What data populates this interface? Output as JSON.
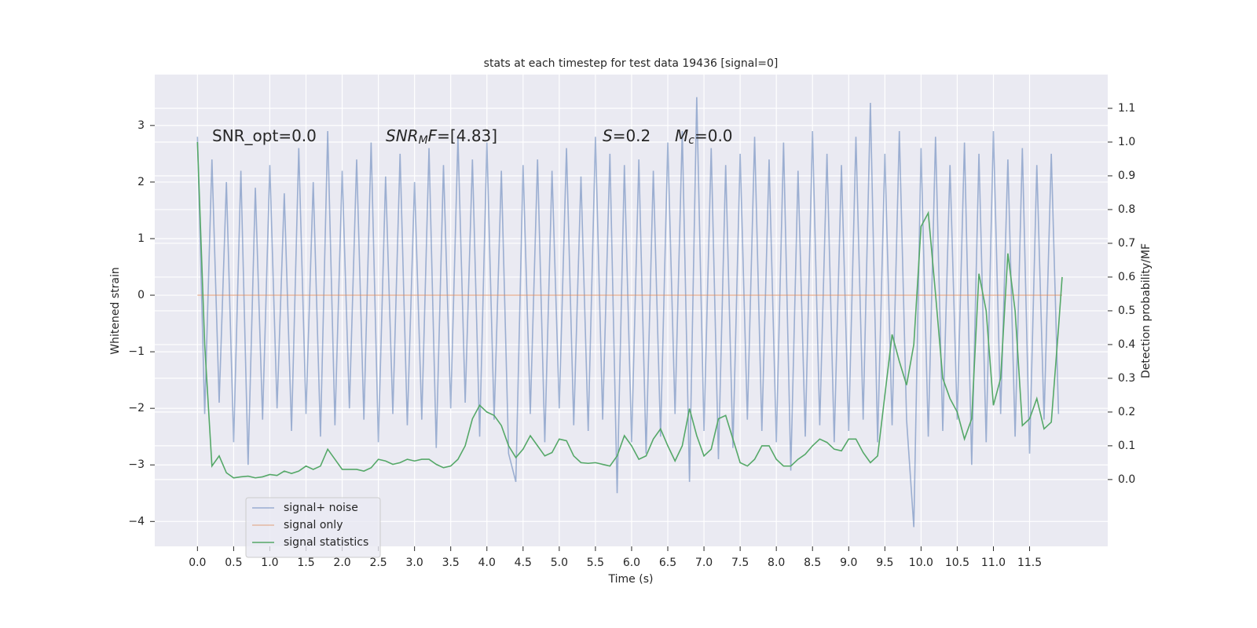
{
  "chart_data": {
    "type": "line",
    "title": "stats at each timestep for test data 19436 [signal=0]",
    "xlabel": "Time (s)",
    "ylabel": "Whitened strain",
    "y2label": "Detection probability/MF",
    "xlim": [
      -0.59,
      12.58
    ],
    "ylim": [
      -4.44,
      3.9
    ],
    "y2lim": [
      -0.198,
      1.2
    ],
    "xticks": [
      {
        "value": 0,
        "label": "0.0"
      },
      0.5,
      {
        "value": 1,
        "label": "1.0"
      },
      1.5,
      {
        "value": 2,
        "label": "2.0"
      },
      2.5,
      {
        "value": 3,
        "label": "3.0"
      },
      3.5,
      {
        "value": 4,
        "label": "4.0"
      },
      4.5,
      {
        "value": 5,
        "label": "5.0"
      },
      5.5,
      {
        "value": 6,
        "label": "6.0"
      },
      6.5,
      {
        "value": 7,
        "label": "7.0"
      },
      7.5,
      {
        "value": 8,
        "label": "8.0"
      },
      8.5,
      {
        "value": 9,
        "label": "9.0"
      },
      9.5,
      {
        "value": 10,
        "label": "10.0"
      },
      10.5,
      {
        "value": 11,
        "label": "11.0"
      },
      11.5
    ],
    "yticks": [
      {
        "value": -4,
        "label": "−4"
      },
      {
        "value": -3,
        "label": "−3"
      },
      {
        "value": -2,
        "label": "−2"
      },
      {
        "value": -1,
        "label": "−1"
      },
      0,
      1,
      2,
      3
    ],
    "y2ticks": [
      {
        "value": 0,
        "label": "0.0"
      },
      0.1,
      0.2,
      0.3,
      0.4,
      0.5,
      0.6,
      0.7,
      0.8,
      0.9,
      {
        "value": 1,
        "label": "1.0"
      },
      1.1
    ],
    "grid": true,
    "legend": "lower left",
    "annotations": [
      [
        {
          "text": "SNR_opt=0.0",
          "style": "normal"
        }
      ],
      [
        {
          "text": "SNR",
          "style": "italic"
        },
        {
          "text": "M",
          "style": "italic-sub"
        },
        {
          "text": "F",
          "style": "italic"
        },
        {
          "text": "=[4.83]",
          "style": "normal"
        }
      ],
      [
        {
          "text": "S",
          "style": "italic"
        },
        {
          "text": "=0.2",
          "style": "normal"
        }
      ],
      [
        {
          "text": "M",
          "style": "italic"
        },
        {
          "text": "c",
          "style": "italic-sub"
        },
        {
          "text": "=0.0",
          "style": "normal"
        }
      ]
    ],
    "series": [
      {
        "name": "signal+ noise",
        "color": "#4c72b0",
        "alpha": 0.5,
        "x": [
          0,
          0.1,
          0.2,
          0.3,
          0.4,
          0.5,
          0.6,
          0.7,
          0.8,
          0.9,
          1,
          1.1,
          1.2,
          1.3,
          1.4,
          1.5,
          1.6,
          1.7,
          1.8,
          1.9,
          2,
          2.1,
          2.2,
          2.3,
          2.4,
          2.5,
          2.6,
          2.7,
          2.8,
          2.9,
          3,
          3.1,
          3.2,
          3.3,
          3.4,
          3.5,
          3.6,
          3.7,
          3.8,
          3.9,
          4,
          4.1,
          4.2,
          4.3,
          4.4,
          4.5,
          4.6,
          4.7,
          4.8,
          4.9,
          5,
          5.1,
          5.2,
          5.3,
          5.4,
          5.5,
          5.6,
          5.7,
          5.8,
          5.9,
          6,
          6.1,
          6.2,
          6.3,
          6.4,
          6.5,
          6.6,
          6.7,
          6.8,
          6.9,
          7,
          7.1,
          7.2,
          7.3,
          7.4,
          7.5,
          7.6,
          7.7,
          7.8,
          7.9,
          8,
          8.1,
          8.2,
          8.3,
          8.4,
          8.5,
          8.6,
          8.7,
          8.8,
          8.9,
          9,
          9.1,
          9.2,
          9.3,
          9.4,
          9.5,
          9.6,
          9.7,
          9.8,
          9.9,
          10,
          10.1,
          10.2,
          10.3,
          10.4,
          10.5,
          10.6,
          10.7,
          10.8,
          10.9,
          11,
          11.1,
          11.2,
          11.3,
          11.4,
          11.5,
          11.6,
          11.7,
          11.8,
          11.9
        ],
        "values": [
          2.8,
          -2.1,
          2.4,
          -1.9,
          2.0,
          -2.6,
          2.2,
          -3.0,
          1.9,
          -2.2,
          2.3,
          -2.0,
          1.8,
          -2.4,
          2.6,
          -2.1,
          2.0,
          -2.5,
          2.9,
          -2.3,
          2.2,
          -2.0,
          2.4,
          -2.2,
          2.7,
          -2.6,
          2.1,
          -2.1,
          2.5,
          -2.3,
          2.0,
          -2.2,
          2.6,
          -2.7,
          2.3,
          -2.0,
          2.8,
          -1.9,
          2.4,
          -2.5,
          2.7,
          -2.2,
          2.2,
          -2.8,
          -3.3,
          2.3,
          -2.1,
          2.4,
          -2.6,
          2.2,
          -2.0,
          2.6,
          -2.3,
          2.1,
          -2.4,
          2.8,
          -2.2,
          2.5,
          -3.5,
          2.3,
          -2.6,
          2.4,
          -2.8,
          2.2,
          -2.5,
          2.7,
          -2.1,
          2.9,
          -3.3,
          3.5,
          -2.4,
          2.6,
          -2.9,
          2.3,
          -2.7,
          2.5,
          -2.2,
          2.8,
          -2.4,
          2.4,
          -2.6,
          2.7,
          -3.1,
          2.2,
          -2.5,
          2.9,
          -2.3,
          2.5,
          -2.6,
          2.3,
          -2.4,
          2.8,
          -2.2,
          3.4,
          -2.6,
          2.5,
          -2.3,
          2.9,
          -2.2,
          -4.1,
          2.6,
          -2.5,
          2.8,
          -2.4,
          2.3,
          -2.2,
          2.7,
          -3.0,
          2.5,
          -2.6,
          2.9,
          -2.1,
          2.4,
          -2.5,
          2.6,
          -2.8,
          2.3,
          -2.2,
          2.5,
          -2.1
        ]
      },
      {
        "name": "signal only",
        "color": "#dd8452",
        "alpha": 0.5,
        "x": [
          0,
          11.95
        ],
        "values": [
          0,
          0
        ]
      },
      {
        "name": "signal statistics",
        "color": "#55a868",
        "alpha": 1,
        "axis": "y2",
        "x": [
          0,
          0.1,
          0.2,
          0.3,
          0.4,
          0.5,
          0.6,
          0.7,
          0.8,
          0.9,
          1,
          1.1,
          1.2,
          1.3,
          1.4,
          1.5,
          1.6,
          1.7,
          1.8,
          1.9,
          2,
          2.1,
          2.2,
          2.3,
          2.4,
          2.5,
          2.6,
          2.7,
          2.8,
          2.9,
          3,
          3.1,
          3.2,
          3.3,
          3.4,
          3.5,
          3.6,
          3.7,
          3.8,
          3.9,
          4,
          4.1,
          4.2,
          4.3,
          4.4,
          4.5,
          4.6,
          4.7,
          4.8,
          4.9,
          5,
          5.1,
          5.2,
          5.3,
          5.4,
          5.5,
          5.6,
          5.7,
          5.8,
          5.9,
          6,
          6.1,
          6.2,
          6.3,
          6.4,
          6.5,
          6.6,
          6.7,
          6.8,
          6.9,
          7,
          7.1,
          7.2,
          7.3,
          7.4,
          7.5,
          7.6,
          7.7,
          7.8,
          7.9,
          8,
          8.1,
          8.2,
          8.3,
          8.4,
          8.5,
          8.6,
          8.7,
          8.8,
          8.9,
          9,
          9.1,
          9.2,
          9.3,
          9.4,
          9.5,
          9.6,
          9.7,
          9.8,
          9.9,
          10,
          10.1,
          10.2,
          10.3,
          10.4,
          10.5,
          10.6,
          10.7,
          10.8,
          10.9,
          11,
          11.1,
          11.2,
          11.3,
          11.4,
          11.5,
          11.6,
          11.7,
          11.8,
          11.9,
          11.95
        ],
        "values": [
          1.0,
          0.4,
          0.04,
          0.07,
          0.02,
          0.005,
          0.008,
          0.01,
          0.005,
          0.008,
          0.015,
          0.012,
          0.025,
          0.018,
          0.025,
          0.04,
          0.03,
          0.04,
          0.09,
          0.06,
          0.03,
          0.03,
          0.03,
          0.025,
          0.035,
          0.06,
          0.055,
          0.045,
          0.05,
          0.06,
          0.055,
          0.06,
          0.06,
          0.045,
          0.035,
          0.04,
          0.06,
          0.1,
          0.18,
          0.22,
          0.2,
          0.19,
          0.16,
          0.1,
          0.065,
          0.09,
          0.13,
          0.1,
          0.07,
          0.08,
          0.12,
          0.115,
          0.07,
          0.05,
          0.048,
          0.05,
          0.045,
          0.04,
          0.07,
          0.13,
          0.1,
          0.06,
          0.07,
          0.12,
          0.15,
          0.1,
          0.055,
          0.1,
          0.21,
          0.13,
          0.07,
          0.09,
          0.18,
          0.19,
          0.12,
          0.05,
          0.04,
          0.06,
          0.1,
          0.1,
          0.06,
          0.04,
          0.04,
          0.06,
          0.075,
          0.1,
          0.12,
          0.11,
          0.09,
          0.085,
          0.12,
          0.12,
          0.08,
          0.05,
          0.07,
          0.25,
          0.43,
          0.35,
          0.28,
          0.4,
          0.75,
          0.79,
          0.55,
          0.3,
          0.24,
          0.2,
          0.12,
          0.18,
          0.61,
          0.5,
          0.22,
          0.3,
          0.67,
          0.5,
          0.16,
          0.18,
          0.24,
          0.15,
          0.17,
          0.45,
          0.6
        ]
      }
    ]
  }
}
